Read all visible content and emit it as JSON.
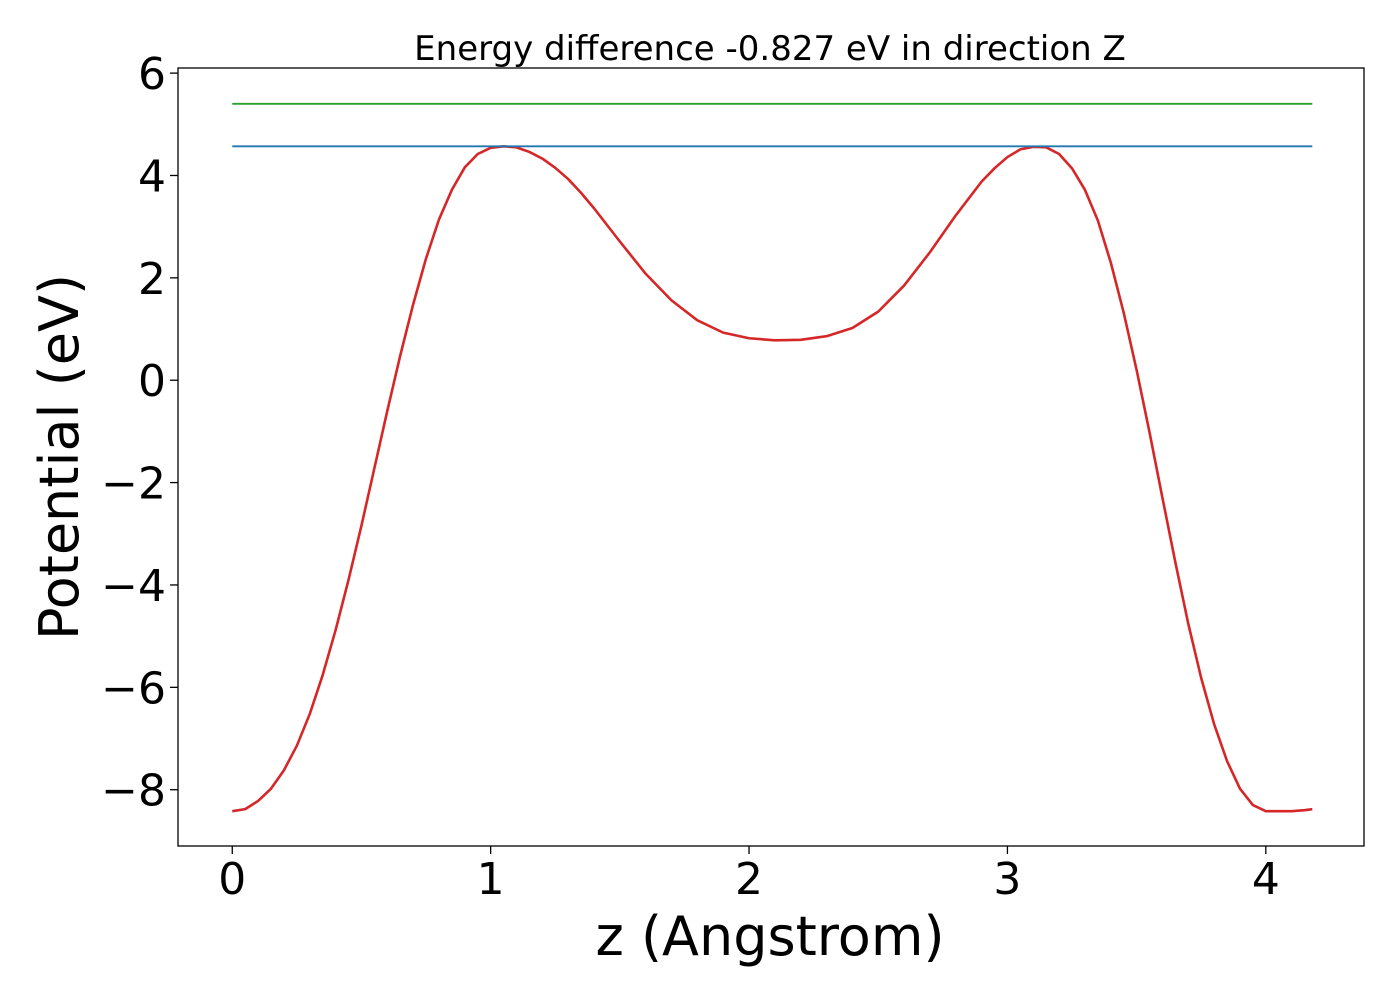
{
  "chart_data": {
    "type": "line",
    "title": "Energy difference -0.827 eV in direction Z",
    "xlabel": "z (Angstrom)",
    "ylabel": "Potential (eV)",
    "xlim": [
      -0.21,
      4.38
    ],
    "ylim": [
      -9.1,
      6.1
    ],
    "xticks": [
      0,
      1,
      2,
      3,
      4
    ],
    "xtick_labels": [
      "0",
      "1",
      "2",
      "3",
      "4"
    ],
    "yticks": [
      6,
      4,
      2,
      0,
      -2,
      -4,
      -6,
      -8
    ],
    "ytick_labels": [
      "6",
      "4",
      "2",
      "0",
      "−2",
      "−4",
      "−6",
      "−8"
    ],
    "grid": false,
    "series": [
      {
        "color": "#d62728",
        "x": [
          0.0,
          0.05,
          0.1,
          0.15,
          0.2,
          0.25,
          0.3,
          0.35,
          0.4,
          0.45,
          0.5,
          0.55,
          0.6,
          0.65,
          0.7,
          0.75,
          0.8,
          0.85,
          0.9,
          0.95,
          1.0,
          1.05,
          1.1,
          1.15,
          1.2,
          1.25,
          1.3,
          1.35,
          1.4,
          1.5,
          1.6,
          1.7,
          1.8,
          1.9,
          2.0,
          2.1,
          2.2,
          2.3,
          2.4,
          2.5,
          2.6,
          2.7,
          2.8,
          2.9,
          2.95,
          3.0,
          3.05,
          3.1,
          3.15,
          3.2,
          3.25,
          3.3,
          3.35,
          3.4,
          3.45,
          3.5,
          3.55,
          3.6,
          3.65,
          3.7,
          3.75,
          3.8,
          3.85,
          3.9,
          3.95,
          4.0,
          4.05,
          4.1,
          4.15,
          4.18
        ],
        "y": [
          -8.42,
          -8.38,
          -8.22,
          -7.98,
          -7.62,
          -7.14,
          -6.52,
          -5.76,
          -4.88,
          -3.9,
          -2.84,
          -1.72,
          -0.6,
          0.48,
          1.48,
          2.38,
          3.14,
          3.72,
          4.16,
          4.42,
          4.54,
          4.57,
          4.55,
          4.46,
          4.33,
          4.15,
          3.93,
          3.66,
          3.36,
          2.71,
          2.08,
          1.56,
          1.17,
          0.93,
          0.82,
          0.78,
          0.79,
          0.86,
          1.02,
          1.34,
          1.85,
          2.5,
          3.22,
          3.88,
          4.14,
          4.36,
          4.51,
          4.56,
          4.55,
          4.42,
          4.14,
          3.72,
          3.12,
          2.3,
          1.32,
          0.2,
          -1.02,
          -2.3,
          -3.56,
          -4.76,
          -5.82,
          -6.72,
          -7.44,
          -7.98,
          -8.3,
          -8.42,
          -8.42,
          -8.42,
          -8.4,
          -8.38
        ]
      },
      {
        "color": "#1f77b4",
        "x": [
          0.0,
          4.18
        ],
        "y": [
          4.57,
          4.57
        ]
      },
      {
        "color": "#2ca02c",
        "x": [
          0.0,
          4.18
        ],
        "y": [
          5.4,
          5.4
        ]
      }
    ]
  }
}
